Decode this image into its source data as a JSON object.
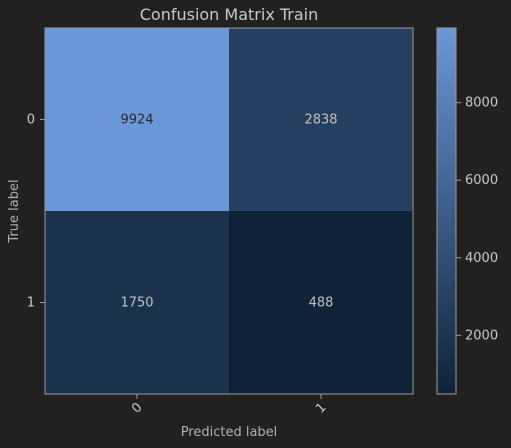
{
  "chart_data": {
    "type": "heatmap",
    "title": "Confusion Matrix Train",
    "xlabel": "Predicted label",
    "ylabel": "True label",
    "x_categories": [
      "0",
      "1"
    ],
    "y_categories": [
      "0",
      "1"
    ],
    "values": [
      [
        9924,
        2838
      ],
      [
        1750,
        488
      ]
    ],
    "colorbar": {
      "min": 488,
      "max": 9924,
      "ticks": [
        2000,
        4000,
        6000,
        8000
      ],
      "tick_labels": [
        "2000",
        "4000",
        "6000",
        "8000"
      ],
      "color_low": "#0f2238",
      "color_high": "#6c97d7"
    },
    "cell_text_colors": {
      "dark_cells": "#c0c0c0",
      "light_cells": "#2a2a2a"
    },
    "colors": {
      "background": "#212121",
      "frame": "#9a9a9a"
    }
  }
}
